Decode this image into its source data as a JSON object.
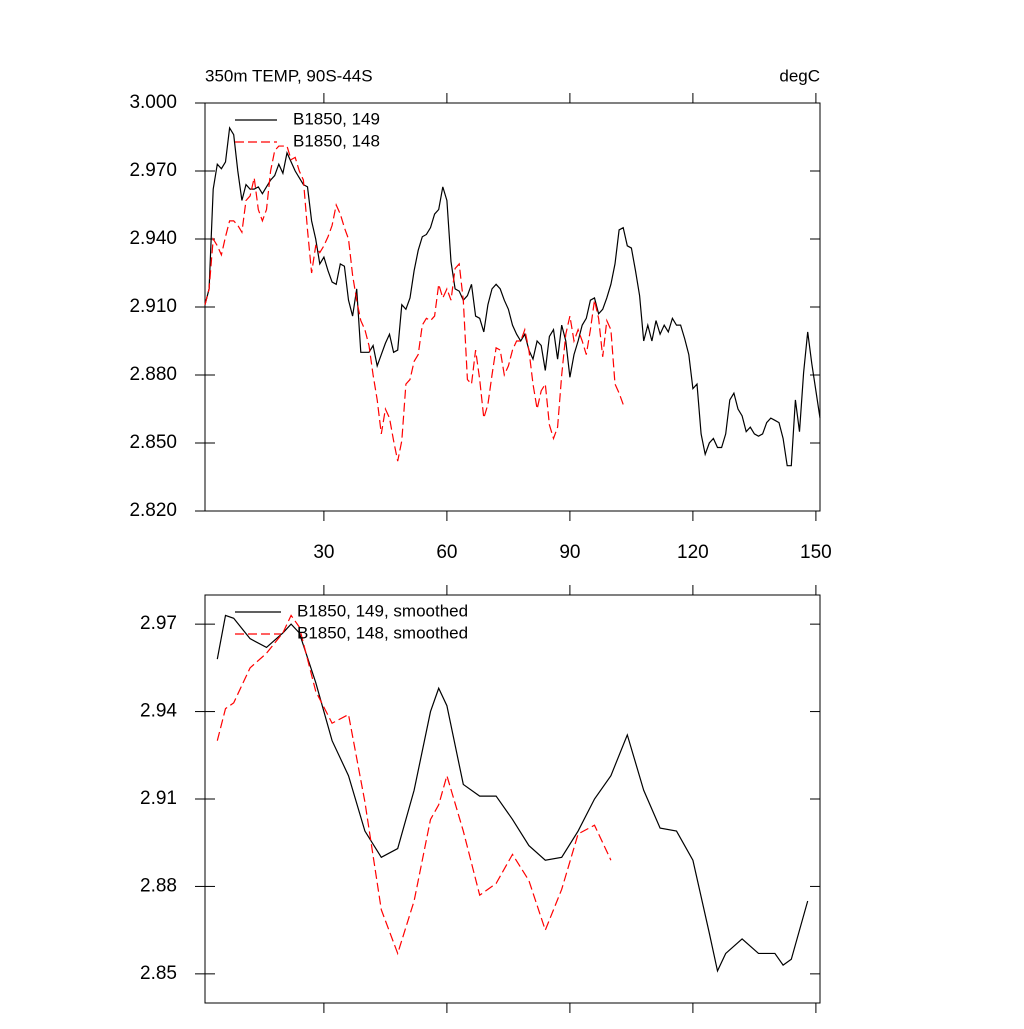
{
  "chart_data": [
    {
      "type": "line",
      "title": "350m TEMP, 90S-44S",
      "units_label": "degC",
      "x": [
        1,
        2,
        3,
        4,
        5,
        6,
        7,
        8,
        9,
        10,
        11,
        12,
        13,
        14,
        15,
        16,
        17,
        18,
        19,
        20,
        21,
        22,
        23,
        24,
        25,
        26,
        27,
        28,
        29,
        30,
        31,
        32,
        33,
        34,
        35,
        36,
        37,
        38,
        39,
        40,
        41,
        42,
        43,
        44,
        45,
        46,
        47,
        48,
        49,
        50,
        51,
        52,
        53,
        54,
        55,
        56,
        57,
        58,
        59,
        60,
        61,
        62,
        63,
        64,
        65,
        66,
        67,
        68,
        69,
        70,
        71,
        72,
        73,
        74,
        75,
        76,
        77,
        78,
        79,
        80,
        81,
        82,
        83,
        84,
        85,
        86,
        87,
        88,
        89,
        90,
        91,
        92,
        93,
        94,
        95,
        96,
        97,
        98,
        99,
        100,
        101,
        102,
        103,
        104,
        105,
        106,
        107,
        108,
        109,
        110,
        111,
        112,
        113,
        114,
        115,
        116,
        117,
        118,
        119,
        120,
        121,
        122,
        123,
        124,
        125,
        126,
        127,
        128,
        129,
        130,
        131,
        132,
        133,
        134,
        135,
        136,
        137,
        138,
        139,
        140,
        141,
        142,
        143,
        144,
        145,
        146,
        147,
        148,
        149,
        150,
        151
      ],
      "series": [
        {
          "name": "B1850, 149",
          "color": "#000000",
          "style": "solid",
          "values": [
            2.911,
            2.918,
            2.962,
            2.973,
            2.971,
            2.974,
            2.989,
            2.986,
            2.97,
            2.957,
            2.964,
            2.962,
            2.962,
            2.963,
            2.96,
            2.963,
            2.966,
            2.968,
            2.973,
            2.969,
            2.978,
            2.974,
            2.97,
            2.967,
            2.964,
            2.963,
            2.948,
            2.94,
            2.929,
            2.932,
            2.926,
            2.921,
            2.92,
            2.929,
            2.928,
            2.913,
            2.906,
            2.918,
            2.89,
            2.89,
            2.89,
            2.893,
            2.884,
            2.889,
            2.894,
            2.898,
            2.89,
            2.891,
            2.911,
            2.909,
            2.914,
            2.926,
            2.935,
            2.941,
            2.942,
            2.945,
            2.951,
            2.953,
            2.963,
            2.957,
            2.93,
            2.918,
            2.917,
            2.913,
            2.915,
            2.92,
            2.906,
            2.905,
            2.899,
            2.911,
            2.918,
            2.92,
            2.918,
            2.913,
            2.909,
            2.902,
            2.898,
            2.895,
            2.898,
            2.891,
            2.887,
            2.895,
            2.893,
            2.882,
            2.897,
            2.9,
            2.887,
            2.902,
            2.895,
            2.879,
            2.889,
            2.895,
            2.902,
            2.905,
            2.913,
            2.914,
            2.907,
            2.909,
            2.914,
            2.92,
            2.929,
            2.944,
            2.945,
            2.937,
            2.936,
            2.926,
            2.915,
            2.895,
            2.902,
            2.895,
            2.904,
            2.898,
            2.902,
            2.899,
            2.905,
            2.902,
            2.902,
            2.896,
            2.889,
            2.874,
            2.876,
            2.854,
            2.845,
            2.85,
            2.852,
            2.848,
            2.848,
            2.854,
            2.869,
            2.872,
            2.865,
            2.862,
            2.855,
            2.857,
            2.854,
            2.853,
            2.854,
            2.859,
            2.861,
            2.86,
            2.859,
            2.852,
            2.84,
            2.84,
            2.869,
            2.855,
            2.881,
            2.899,
            2.885,
            2.873,
            2.861
          ]
        },
        {
          "name": "B1850, 148",
          "color": "#ff0000",
          "style": "dashed",
          "values": [
            2.911,
            2.918,
            2.94,
            2.937,
            2.933,
            2.941,
            2.948,
            2.948,
            2.946,
            2.943,
            2.957,
            2.959,
            2.967,
            2.953,
            2.948,
            2.953,
            2.97,
            2.979,
            2.981,
            2.981,
            2.981,
            2.975,
            2.976,
            2.97,
            2.966,
            2.944,
            2.925,
            2.937,
            2.934,
            2.937,
            2.941,
            2.946,
            2.955,
            2.951,
            2.945,
            2.94,
            2.924,
            2.913,
            2.904,
            2.9,
            2.893,
            2.88,
            2.869,
            2.854,
            2.865,
            2.861,
            2.851,
            2.842,
            2.851,
            2.876,
            2.878,
            2.886,
            2.889,
            2.902,
            2.905,
            2.904,
            2.906,
            2.92,
            2.914,
            2.918,
            2.913,
            2.927,
            2.929,
            2.913,
            2.878,
            2.876,
            2.891,
            2.878,
            2.861,
            2.867,
            2.88,
            2.892,
            2.891,
            2.88,
            2.884,
            2.891,
            2.895,
            2.895,
            2.9,
            2.891,
            2.876,
            2.865,
            2.873,
            2.876,
            2.858,
            2.852,
            2.857,
            2.88,
            2.898,
            2.906,
            2.895,
            2.9,
            2.895,
            2.889,
            2.9,
            2.913,
            2.905,
            2.888,
            2.904,
            2.9,
            2.876,
            2.872,
            2.867,
            null,
            null,
            null,
            null,
            null,
            null,
            null,
            null,
            null,
            null,
            null,
            null,
            null,
            null,
            null,
            null,
            null,
            null,
            null,
            null,
            null,
            null,
            null,
            null,
            null,
            null,
            null,
            null,
            null,
            null,
            null,
            null,
            null,
            null,
            null,
            null,
            null,
            null,
            null,
            null,
            null,
            null,
            null,
            null,
            null,
            null,
            null,
            null
          ]
        }
      ],
      "xlim": [
        1,
        151
      ],
      "xticks": [
        30,
        60,
        90,
        120,
        150
      ],
      "xtick_labels": true,
      "ylim": [
        2.82,
        3.0
      ],
      "yticks": [
        {
          "value": 2.82,
          "label": "2.820"
        },
        {
          "value": 2.85,
          "label": "2.850"
        },
        {
          "value": 2.88,
          "label": "2.880"
        },
        {
          "value": 2.91,
          "label": "2.910"
        },
        {
          "value": 2.94,
          "label": "2.940"
        },
        {
          "value": 2.97,
          "label": "2.970"
        },
        {
          "value": 3.0,
          "label": "3.000"
        }
      ],
      "grid": false,
      "legend": "upper left"
    },
    {
      "type": "line",
      "x": [
        4,
        6,
        8,
        12,
        16,
        20,
        22,
        24,
        28,
        32,
        36,
        40,
        44,
        48,
        52,
        56,
        58,
        60,
        64,
        68,
        72,
        76,
        80,
        84,
        88,
        92,
        96,
        100,
        104,
        108,
        112,
        116,
        120,
        124,
        126,
        128,
        132,
        136,
        140,
        142,
        144,
        146,
        148
      ],
      "series": [
        {
          "name": "B1850, 149, smoothed",
          "color": "#000000",
          "style": "solid",
          "values": [
            2.958,
            2.973,
            2.972,
            2.965,
            2.962,
            2.967,
            2.97,
            2.967,
            2.95,
            2.93,
            2.918,
            2.899,
            2.89,
            2.893,
            2.913,
            2.94,
            2.948,
            2.942,
            2.915,
            2.911,
            2.911,
            2.903,
            2.894,
            2.889,
            2.89,
            2.899,
            2.91,
            2.918,
            2.932,
            2.913,
            2.9,
            2.899,
            2.889,
            2.864,
            2.851,
            2.857,
            2.862,
            2.857,
            2.857,
            2.853,
            2.855,
            2.865,
            2.875
          ]
        },
        {
          "name": "B1850, 148, smoothed",
          "color": "#ff0000",
          "style": "dashed",
          "values": [
            2.93,
            2.941,
            2.943,
            2.955,
            2.96,
            2.967,
            2.973,
            2.969,
            2.947,
            2.936,
            2.939,
            2.909,
            2.872,
            2.857,
            2.875,
            2.903,
            2.908,
            2.918,
            2.899,
            2.877,
            2.881,
            2.891,
            2.882,
            2.865,
            2.879,
            2.898,
            2.901,
            2.889,
            null,
            null,
            null,
            null,
            null,
            null,
            null,
            null,
            null,
            null,
            null,
            null,
            null,
            null,
            null
          ]
        }
      ],
      "xlim": [
        1,
        151
      ],
      "xticks": [
        30,
        60,
        90,
        120,
        150
      ],
      "xtick_labels": false,
      "ylim": [
        2.84,
        2.98
      ],
      "yticks": [
        2.85,
        2.88,
        2.91,
        2.94,
        2.97
      ],
      "grid": false,
      "legend": "upper left"
    }
  ]
}
